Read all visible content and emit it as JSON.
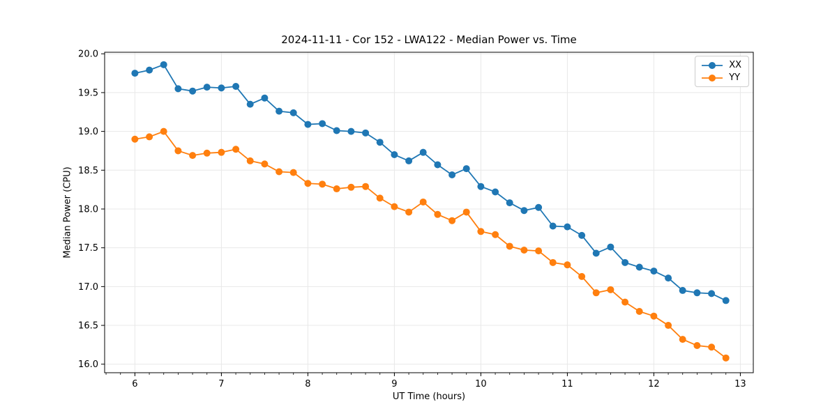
{
  "chart_data": {
    "type": "line",
    "title": "2024-11-11 - Cor 152 - LWA122 - Median Power vs. Time",
    "xlabel": "UT Time (hours)",
    "ylabel": "Median Power (CPU)",
    "xlim": [
      5.65,
      13.15
    ],
    "ylim": [
      15.89,
      20.02
    ],
    "x_ticks": [
      6,
      7,
      8,
      9,
      10,
      11,
      12,
      13
    ],
    "y_ticks": [
      16.0,
      16.5,
      17.0,
      17.5,
      18.0,
      18.5,
      19.0,
      19.5,
      20.0
    ],
    "x_minor_step": 0.166667,
    "grid": true,
    "grid_color": "#e8e8e8",
    "spine_color": "#000000",
    "legend_position": "upper right",
    "x": [
      6.0,
      6.167,
      6.333,
      6.5,
      6.667,
      6.833,
      7.0,
      7.167,
      7.333,
      7.5,
      7.667,
      7.833,
      8.0,
      8.167,
      8.333,
      8.5,
      8.667,
      8.833,
      9.0,
      9.167,
      9.333,
      9.5,
      9.667,
      9.833,
      10.0,
      10.167,
      10.333,
      10.5,
      10.667,
      10.833,
      11.0,
      11.167,
      11.333,
      11.5,
      11.667,
      11.833,
      12.0,
      12.167,
      12.333,
      12.5,
      12.667,
      12.833
    ],
    "series": [
      {
        "name": "XX",
        "color": "#1f77b4",
        "values": [
          19.75,
          19.79,
          19.86,
          19.55,
          19.52,
          19.57,
          19.56,
          19.58,
          19.35,
          19.43,
          19.26,
          19.24,
          19.09,
          19.1,
          19.01,
          19.0,
          18.98,
          18.86,
          18.7,
          18.62,
          18.73,
          18.57,
          18.44,
          18.52,
          18.29,
          18.22,
          18.08,
          17.98,
          18.02,
          17.78,
          17.77,
          17.66,
          17.43,
          17.51,
          17.31,
          17.25,
          17.2,
          17.11,
          16.95,
          16.92,
          16.91,
          16.82
        ]
      },
      {
        "name": "YY",
        "color": "#ff7f0e",
        "values": [
          18.9,
          18.93,
          19.0,
          18.75,
          18.69,
          18.72,
          18.73,
          18.77,
          18.62,
          18.58,
          18.48,
          18.47,
          18.33,
          18.32,
          18.26,
          18.28,
          18.29,
          18.14,
          18.03,
          17.96,
          18.09,
          17.93,
          17.85,
          17.96,
          17.71,
          17.67,
          17.52,
          17.47,
          17.46,
          17.31,
          17.28,
          17.13,
          16.92,
          16.96,
          16.8,
          16.68,
          16.62,
          16.5,
          16.32,
          16.24,
          16.22,
          16.08
        ]
      }
    ]
  }
}
